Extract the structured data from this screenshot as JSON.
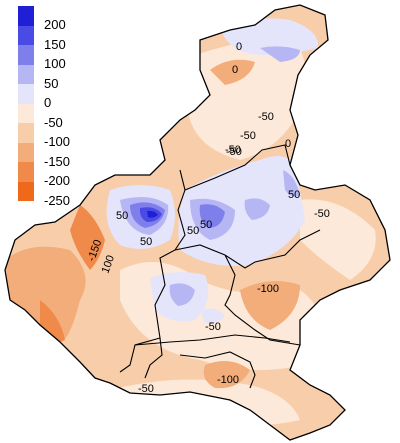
{
  "legend": {
    "items": [
      {
        "label": "200",
        "color": "#1f1fd6"
      },
      {
        "label": "150",
        "color": "#4a4ae4"
      },
      {
        "label": "100",
        "color": "#7f7fec"
      },
      {
        "label": "50",
        "color": "#b6b6f4"
      },
      {
        "label": "0",
        "color": "#e4e4fb"
      },
      {
        "label": "-50",
        "color": "#fde9d9"
      },
      {
        "label": "-100",
        "color": "#f8cdaa"
      },
      {
        "label": "-150",
        "color": "#f3ad7a"
      },
      {
        "label": "-200",
        "color": "#f08a4b"
      },
      {
        "label": "-250",
        "color": "#ee6a1a"
      }
    ]
  },
  "contour_labels": {
    "l1": "0",
    "l2": "0",
    "l3": "-50",
    "l4": "0",
    "l5": "-50",
    "l6": "-50",
    "l7": "50",
    "l8": "50",
    "l9": "50",
    "l10": "-50",
    "l11": "-150",
    "l12": "100",
    "l13": "-100",
    "l14": "-50",
    "l15": "-50",
    "l16": "-100",
    "l17": "50",
    "l18": "-50",
    "l19": "50"
  }
}
